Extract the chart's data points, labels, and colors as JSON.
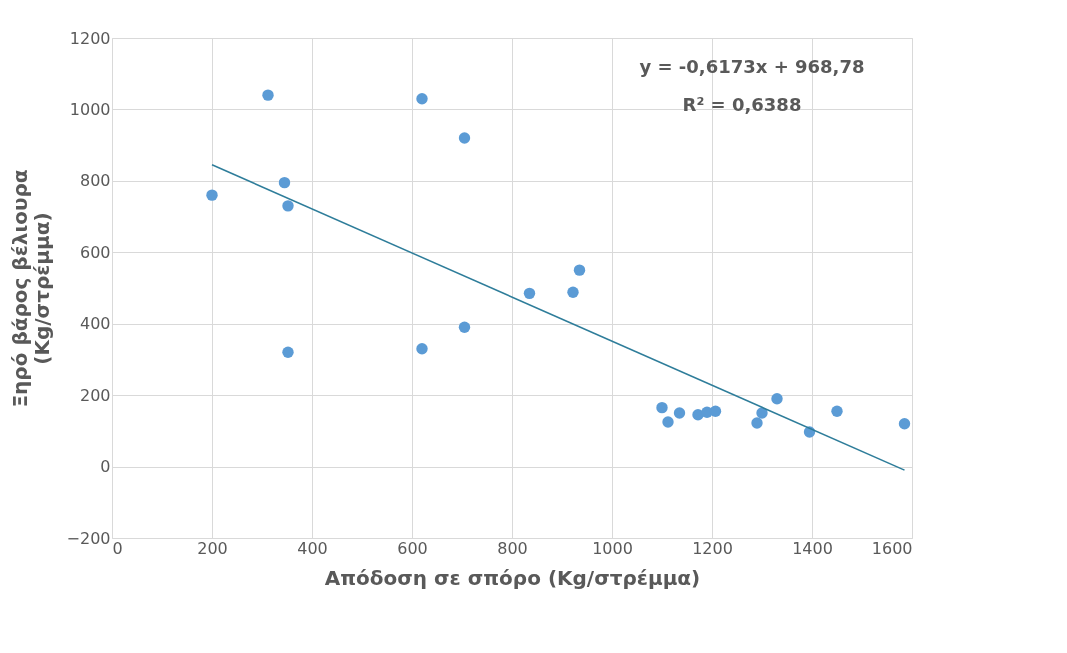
{
  "chart_data": {
    "type": "scatter",
    "xlabel": "Απόδοση σε σπόρο (Kg/στρέμμα)",
    "ylabel": "Ξηρό βάρος βέλιουρα\n(Kg/στρέμμα)",
    "series": [
      {
        "color": "#5b9bd5",
        "marker": "circle",
        "x": [
          200,
          312,
          345,
          352,
          352,
          620,
          620,
          705,
          705,
          835,
          922,
          935,
          1100,
          1112,
          1135,
          1172,
          1190,
          1207,
          1290,
          1300,
          1330,
          1395,
          1450,
          1585
        ],
        "values": [
          760,
          1040,
          795,
          730,
          320,
          1030,
          330,
          920,
          390,
          485,
          488,
          550,
          165,
          125,
          150,
          145,
          152,
          155,
          122,
          150,
          190,
          97,
          155,
          120
        ]
      },
      {
        "type": "line",
        "color": "#2e7d9a",
        "x": [
          200,
          1585
        ],
        "values": [
          845,
          -10
        ]
      }
    ],
    "xlim": [
      0,
      1600
    ],
    "ylim": [
      -200,
      1200
    ],
    "xticks": [
      0,
      200,
      400,
      600,
      800,
      1000,
      1200,
      1400,
      1600
    ],
    "yticks": [
      -200,
      0,
      200,
      400,
      600,
      800,
      1000,
      1200
    ],
    "grid": true,
    "annotations": [
      "y = -0,6173x + 968,78",
      "R² = 0,6388"
    ]
  }
}
